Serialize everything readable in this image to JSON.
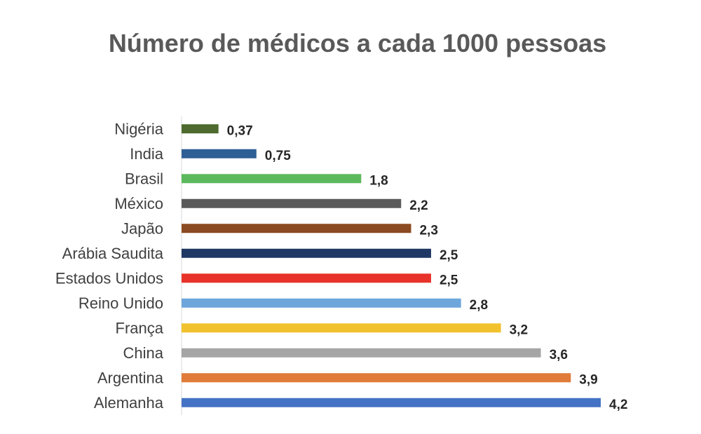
{
  "chart_data": {
    "type": "bar",
    "orientation": "horizontal",
    "title": "Número de médicos a cada 1000 pessoas",
    "categories": [
      "Nigéria",
      "India",
      "Brasil",
      "México",
      "Japão",
      "Arábia Saudita",
      "Estados Unidos",
      "Reino Unido",
      "França",
      "China",
      "Argentina",
      "Alemanha"
    ],
    "values": [
      0.37,
      0.75,
      1.8,
      2.2,
      2.3,
      2.5,
      2.5,
      2.8,
      3.2,
      3.6,
      3.9,
      4.2
    ],
    "value_labels": [
      "0,37",
      "0,75",
      "1,8",
      "2,2",
      "2,3",
      "2,5",
      "2,5",
      "2,8",
      "3,2",
      "3,6",
      "3,9",
      "4,2"
    ],
    "colors": [
      "#4e6a2e",
      "#2e5f95",
      "#5cb85c",
      "#5a5a5a",
      "#8b4a21",
      "#1f3864",
      "#e8332a",
      "#6ea6dc",
      "#f2c12e",
      "#a5a5a5",
      "#e07b39",
      "#4472c4"
    ],
    "xlim": [
      0,
      4.2
    ],
    "grid": false,
    "legend": "none"
  }
}
